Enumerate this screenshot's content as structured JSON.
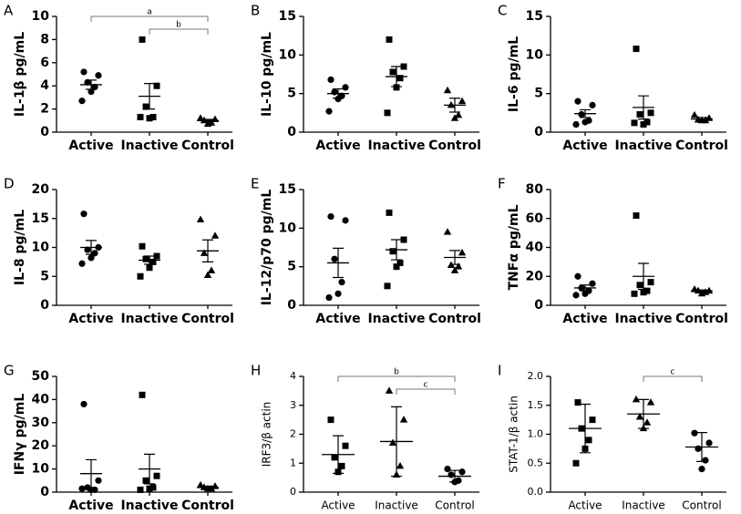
{
  "chart_data": [
    {
      "type": "dot",
      "panel": "A",
      "ylabel": "IL-1β pg/mL",
      "bold_labels": true,
      "markers": [
        "circle",
        "square",
        "triangle"
      ],
      "categories": [
        "Active",
        "Inactive",
        "Control"
      ],
      "values": [
        [
          5.2,
          4.9,
          4.3,
          3.9,
          3.5,
          2.7
        ],
        [
          8.0,
          4.0,
          2.2,
          1.3,
          1.2,
          1.3
        ],
        [
          1.2,
          1.1,
          1.0,
          0.8,
          0.7
        ]
      ],
      "means": [
        4.1,
        3.1,
        1.0
      ],
      "errors": [
        0.4,
        1.1,
        0.1
      ],
      "ylim": [
        0,
        10
      ],
      "yticks": [
        0,
        2,
        4,
        6,
        8,
        10
      ],
      "brackets": [
        {
          "from": 0,
          "to": 2,
          "label": "a"
        },
        {
          "from": 1,
          "to": 2,
          "label": "b"
        }
      ]
    },
    {
      "type": "dot",
      "panel": "B",
      "ylabel": "IL-10 pg/mL",
      "bold_labels": true,
      "markers": [
        "circle",
        "square",
        "triangle"
      ],
      "categories": [
        "Active",
        "Inactive",
        "Control"
      ],
      "values": [
        [
          6.8,
          5.8,
          5.2,
          4.7,
          4.3,
          2.7
        ],
        [
          12.0,
          8.5,
          7.8,
          7.0,
          5.8,
          2.5
        ],
        [
          5.4,
          4.0,
          3.5,
          2.2,
          1.8
        ]
      ],
      "means": [
        5.0,
        7.2,
        3.5
      ],
      "errors": [
        0.6,
        1.3,
        0.9
      ],
      "ylim": [
        0,
        15
      ],
      "yticks": [
        0,
        5,
        10,
        15
      ]
    },
    {
      "type": "dot",
      "panel": "C",
      "ylabel": "IL-6 pg/mL",
      "bold_labels": true,
      "markers": [
        "circle",
        "square",
        "triangle"
      ],
      "categories": [
        "Active",
        "Inactive",
        "Control"
      ],
      "values": [
        [
          4.0,
          3.5,
          2.3,
          1.5,
          1.3,
          1.0
        ],
        [
          10.8,
          2.5,
          2.3,
          1.3,
          1.0,
          1.2
        ],
        [
          2.2,
          1.8,
          1.6,
          1.5,
          1.5
        ]
      ],
      "means": [
        2.4,
        3.2,
        1.7
      ],
      "errors": [
        0.5,
        1.5,
        0.2
      ],
      "ylim": [
        0,
        15
      ],
      "yticks": [
        0,
        5,
        10,
        15
      ]
    },
    {
      "type": "dot",
      "panel": "D",
      "ylabel": "IL-8 pg/mL",
      "bold_labels": true,
      "markers": [
        "circle",
        "square",
        "triangle"
      ],
      "categories": [
        "Active",
        "Inactive",
        "Control"
      ],
      "values": [
        [
          15.8,
          10.0,
          9.6,
          9.0,
          8.2,
          7.2
        ],
        [
          10.2,
          8.5,
          8.0,
          7.5,
          6.5,
          5.0
        ],
        [
          14.8,
          12.0,
          9.0,
          6.0,
          5.2
        ]
      ],
      "means": [
        10.0,
        7.8,
        9.4
      ],
      "errors": [
        1.2,
        0.7,
        1.9
      ],
      "ylim": [
        0,
        20
      ],
      "yticks": [
        0,
        5,
        10,
        15,
        20
      ]
    },
    {
      "type": "dot",
      "panel": "E",
      "ylabel": "IL-12/p70 pg/mL",
      "bold_labels": true,
      "markers": [
        "circle",
        "square",
        "triangle"
      ],
      "categories": [
        "Active",
        "Inactive",
        "Control"
      ],
      "values": [
        [
          11.5,
          11.0,
          6.0,
          3.0,
          1.5,
          1.0
        ],
        [
          12.0,
          8.5,
          7.0,
          5.5,
          5.0,
          2.5
        ],
        [
          9.5,
          6.8,
          5.2,
          5.0,
          4.5
        ]
      ],
      "means": [
        5.5,
        7.2,
        6.2
      ],
      "errors": [
        1.9,
        1.3,
        0.9
      ],
      "ylim": [
        0,
        15
      ],
      "yticks": [
        0,
        5,
        10,
        15
      ]
    },
    {
      "type": "dot",
      "panel": "F",
      "ylabel": "TNFα pg/mL",
      "bold_labels": true,
      "markers": [
        "circle",
        "square",
        "triangle"
      ],
      "categories": [
        "Active",
        "Inactive",
        "Control"
      ],
      "values": [
        [
          20,
          15,
          12,
          10,
          8,
          7
        ],
        [
          62,
          16,
          14,
          10,
          9,
          8
        ],
        [
          11,
          10,
          10,
          9,
          8
        ]
      ],
      "means": [
        12,
        20,
        10
      ],
      "errors": [
        2,
        9,
        0.6
      ],
      "ylim": [
        0,
        80
      ],
      "yticks": [
        0,
        20,
        40,
        60,
        80
      ]
    },
    {
      "type": "dot",
      "panel": "G",
      "ylabel": "IFNγ pg/mL",
      "bold_labels": true,
      "markers": [
        "circle",
        "square",
        "triangle"
      ],
      "categories": [
        "Active",
        "Inactive",
        "Control"
      ],
      "values": [
        [
          38,
          5,
          2,
          1,
          1,
          1.5
        ],
        [
          42,
          7,
          5,
          2,
          1.5,
          1
        ],
        [
          3,
          2.5,
          2,
          1.5,
          1.5
        ]
      ],
      "means": [
        8,
        10,
        2
      ],
      "errors": [
        6,
        6.4,
        0.5
      ],
      "ylim": [
        0,
        50
      ],
      "yticks": [
        0,
        10,
        20,
        30,
        40,
        50
      ]
    },
    {
      "type": "dot",
      "panel": "H",
      "ylabel": "IRF3/β actin",
      "bold_labels": false,
      "markers": [
        "square",
        "triangle",
        "circle"
      ],
      "categories": [
        "Active",
        "Inactive",
        "Control"
      ],
      "values": [
        [
          2.5,
          1.6,
          1.2,
          0.9,
          0.7
        ],
        [
          3.5,
          2.5,
          1.7,
          0.9,
          0.6
        ],
        [
          0.8,
          0.7,
          0.6,
          0.4,
          0.35
        ]
      ],
      "means": [
        1.3,
        1.75,
        0.55
      ],
      "errors": [
        0.65,
        1.2,
        0.2
      ],
      "ylim": [
        0,
        4
      ],
      "yticks": [
        0,
        1,
        2,
        3,
        4
      ],
      "brackets": [
        {
          "from": 0,
          "to": 2,
          "label": "b"
        },
        {
          "from": 1,
          "to": 2,
          "label": "c"
        }
      ]
    },
    {
      "type": "dot",
      "panel": "I",
      "ylabel": "STAT-1/β actin",
      "bold_labels": false,
      "markers": [
        "square",
        "triangle",
        "circle"
      ],
      "categories": [
        "Active",
        "Inactive",
        "Control"
      ],
      "values": [
        [
          1.55,
          1.25,
          1.1,
          0.9,
          0.75,
          0.5
        ],
        [
          1.6,
          1.55,
          1.3,
          1.2,
          1.1
        ],
        [
          1.02,
          0.85,
          0.75,
          0.55,
          0.4
        ]
      ],
      "means": [
        1.1,
        1.35,
        0.78
      ],
      "errors": [
        0.42,
        0.25,
        0.25
      ],
      "ylim": [
        0,
        2
      ],
      "yticks": [
        {
          "value": 0,
          "label": "0.0"
        },
        {
          "value": 0.5,
          "label": "0.5"
        },
        {
          "value": 1,
          "label": "1.0"
        },
        {
          "value": 1.5,
          "label": "1.5"
        },
        {
          "value": 2,
          "label": "2.0"
        }
      ],
      "brackets": [
        {
          "from": 1,
          "to": 2,
          "label": "c"
        }
      ]
    }
  ]
}
